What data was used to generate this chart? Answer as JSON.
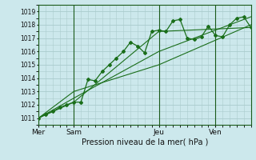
{
  "title": "Pression niveau de la mer( hPa )",
  "bg_color": "#cce8ec",
  "grid_color": "#aacccc",
  "line_color": "#1a6e1a",
  "dark_line_color": "#1a5a1a",
  "ylim": [
    1010.5,
    1019.5
  ],
  "yticks": [
    1011,
    1012,
    1013,
    1014,
    1015,
    1016,
    1017,
    1018,
    1019
  ],
  "day_labels": [
    "Mer",
    "Sam",
    "Jeu",
    "Ven"
  ],
  "day_positions": [
    0,
    5,
    17,
    25
  ],
  "xlim": [
    0,
    30
  ],
  "series1_x": [
    0,
    1,
    2,
    3,
    4,
    5,
    6,
    7,
    8,
    9,
    10,
    11,
    12,
    13,
    14,
    15,
    16,
    17,
    18,
    19,
    20,
    21,
    22,
    23,
    24,
    25,
    26,
    27,
    28,
    29,
    30
  ],
  "series1_y": [
    1011.0,
    1011.3,
    1011.5,
    1011.8,
    1012.0,
    1012.2,
    1012.2,
    1013.9,
    1013.8,
    1014.5,
    1015.0,
    1015.5,
    1016.0,
    1016.7,
    1016.4,
    1015.9,
    1017.5,
    1017.6,
    1017.5,
    1018.3,
    1018.4,
    1017.0,
    1016.9,
    1017.1,
    1017.9,
    1017.2,
    1017.1,
    1018.0,
    1018.5,
    1018.6,
    1017.8
  ],
  "series2_x": [
    0,
    5,
    17,
    30
  ],
  "series2_y": [
    1011.0,
    1012.2,
    1017.5,
    1017.8
  ],
  "series3_x": [
    0,
    5,
    17,
    30
  ],
  "series3_y": [
    1011.0,
    1012.5,
    1016.0,
    1018.6
  ],
  "series4_x": [
    0,
    5,
    17,
    30
  ],
  "series4_y": [
    1011.0,
    1013.0,
    1015.0,
    1018.0
  ]
}
